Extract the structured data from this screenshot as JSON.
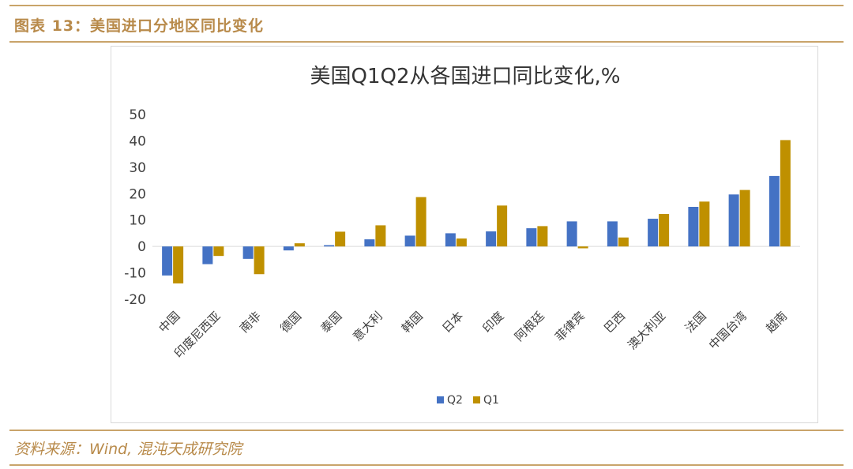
{
  "header": {
    "title": "图表 13：美国进口分地区同比变化"
  },
  "footer": {
    "source": "资料来源：Wind, 混沌天成研究院"
  },
  "colors": {
    "accent": "#b88a4a",
    "q2": "#4472c4",
    "q1": "#bf9000"
  },
  "chart_data": {
    "type": "bar",
    "title": "美国Q1Q2从各国进口同比变化,%",
    "xlabel": "",
    "ylabel": "",
    "ylim": [
      -20,
      50
    ],
    "yticks": [
      50,
      40,
      30,
      20,
      10,
      0,
      -10,
      -20
    ],
    "grid": false,
    "legend": "bottom",
    "categories": [
      "中国",
      "印度尼西亚",
      "南非",
      "德国",
      "泰国",
      "意大利",
      "韩国",
      "日本",
      "印度",
      "阿根廷",
      "菲律宾",
      "巴西",
      "澳大利亚",
      "法国",
      "中国台湾",
      "越南"
    ],
    "series": [
      {
        "name": "Q2",
        "values": [
          -11,
          -6.7,
          -4.7,
          -1.5,
          0.5,
          2.7,
          4.1,
          5,
          5.7,
          6.9,
          9.5,
          9.5,
          10.5,
          15,
          19.7,
          26.7
        ]
      },
      {
        "name": "Q1",
        "values": [
          -14,
          -3.6,
          -10.5,
          1.2,
          5.6,
          8,
          18.7,
          3,
          15.5,
          7.7,
          -0.7,
          3.4,
          12.3,
          17,
          21.4,
          40.3
        ]
      }
    ]
  }
}
